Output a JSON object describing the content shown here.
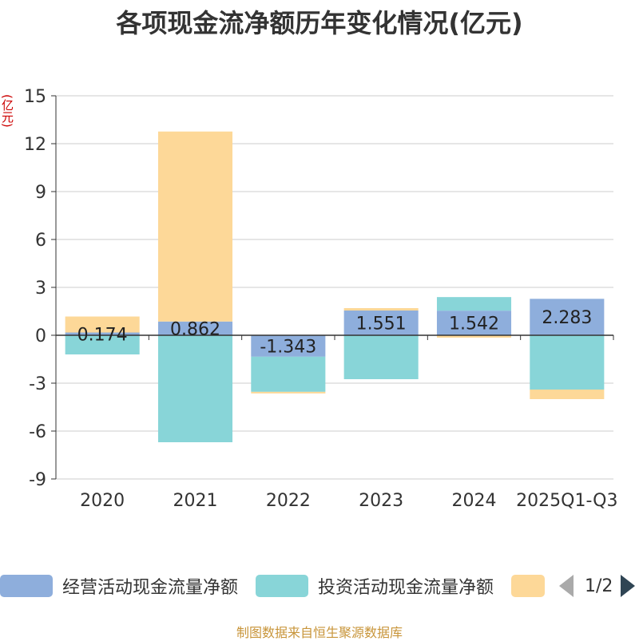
{
  "title": "各项现金流净额历年变化情况(亿元)",
  "unit_label": "(亿元)",
  "legend": {
    "items": [
      {
        "label": "经营活动现金流量净额",
        "color": "#8eaedc"
      },
      {
        "label": "投资活动现金流量净额",
        "color": "#88d5d8"
      },
      {
        "label": "",
        "color": "#fdd898"
      }
    ],
    "page_text": "1/2"
  },
  "source": "制图数据来自恒生聚源数据库",
  "chart_data": {
    "type": "bar",
    "stacked": true,
    "title": "各项现金流净额历年变化情况(亿元)",
    "ylabel": "(亿元)",
    "ylim": [
      -9,
      15
    ],
    "yticks": [
      15,
      12,
      9,
      6,
      3,
      0,
      -3,
      -6,
      -9
    ],
    "categories": [
      "2020",
      "2021",
      "2022",
      "2023",
      "2024",
      "2025Q1-Q3"
    ],
    "series": [
      {
        "name": "经营活动现金流量净额",
        "color": "#8eaedc",
        "values": [
          0.174,
          0.862,
          -1.343,
          1.551,
          1.542,
          2.283
        ],
        "labels": [
          "0.174",
          "0.862",
          "-1.343",
          "1.551",
          "1.542",
          "2.283"
        ]
      },
      {
        "name": "投资活动现金流量净额",
        "color": "#88d5d8",
        "values": [
          -1.2,
          -6.7,
          -2.2,
          -2.75,
          0.85,
          -3.4
        ]
      },
      {
        "name": "",
        "color": "#fdd898",
        "values": [
          1.0,
          11.9,
          -0.1,
          0.15,
          -0.15,
          -0.6
        ]
      }
    ]
  }
}
